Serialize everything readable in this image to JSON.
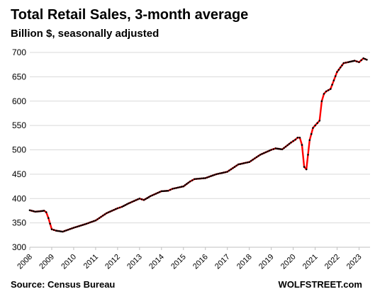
{
  "chart_data": {
    "type": "line",
    "title": "Total Retail Sales, 3-month average",
    "subtitle": "Billion $, seasonally adjusted",
    "source": "Source: Census Bureau",
    "brand": "WOLFSTREET.com",
    "xlabel": "",
    "ylabel": "",
    "ylim": [
      300,
      700
    ],
    "y_ticks": [
      "300",
      "350",
      "400",
      "450",
      "500",
      "550",
      "600",
      "650",
      "700"
    ],
    "xlim": [
      2008,
      2023.5
    ],
    "x_ticks": [
      "2008",
      "2009",
      "2010",
      "2011",
      "2012",
      "2013",
      "2014",
      "2015",
      "2016",
      "2017",
      "2018",
      "2019",
      "2020",
      "2021",
      "2022",
      "2023"
    ],
    "grid": "horizontal",
    "legend": "none",
    "line_color": "#ff0000",
    "marker_color": "#000000",
    "series": [
      {
        "x": [
          2008.0,
          2008.25,
          2008.5,
          2008.65,
          2008.75,
          2008.85,
          2009.0,
          2009.2,
          2009.5,
          2010.0,
          2010.5,
          2011.0,
          2011.5,
          2012.0,
          2012.2,
          2012.5,
          2013.0,
          2013.2,
          2013.5,
          2014.0,
          2014.3,
          2014.5,
          2015.0,
          2015.3,
          2015.5,
          2016.0,
          2016.5,
          2017.0,
          2017.5,
          2018.0,
          2018.5,
          2019.0,
          2019.2,
          2019.5,
          2019.9,
          2020.1,
          2020.2,
          2020.3,
          2020.4,
          2020.5,
          2020.6,
          2020.75,
          2020.9,
          2021.0,
          2021.2,
          2021.3,
          2021.4,
          2021.5,
          2021.7,
          2022.0,
          2022.3,
          2022.5,
          2022.8,
          2023.0,
          2023.2,
          2023.35
        ],
        "y": [
          376,
          373,
          374,
          375,
          372,
          360,
          337,
          334,
          332,
          340,
          347,
          355,
          370,
          380,
          383,
          390,
          400,
          397,
          405,
          415,
          416,
          420,
          425,
          435,
          440,
          442,
          450,
          455,
          470,
          475,
          490,
          500,
          503,
          501,
          515,
          521,
          525,
          525,
          510,
          465,
          460,
          520,
          545,
          550,
          560,
          600,
          615,
          620,
          625,
          660,
          678,
          680,
          683,
          680,
          688,
          685
        ]
      }
    ]
  }
}
